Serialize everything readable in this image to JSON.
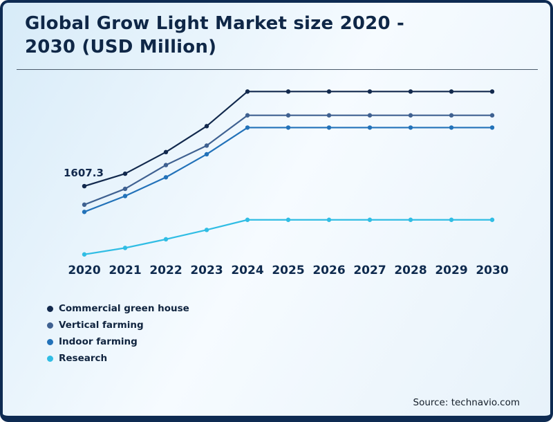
{
  "page": {
    "title": "Global Grow Light Market size 2020 - 2030 (USD Million)",
    "source": "Source: technavio.com"
  },
  "chart_data": {
    "type": "line",
    "title": "Global Grow Light Market size 2020 - 2030 (USD Million)",
    "categories": [
      "2020",
      "2021",
      "2022",
      "2023",
      "2024",
      "2025",
      "2026",
      "2027",
      "2028",
      "2029",
      "2030"
    ],
    "series": [
      {
        "name": "Commercial green house",
        "color": "#12294d",
        "values": [
          1607.3,
          1780,
          2080,
          2440,
          2920,
          2920,
          2920,
          2920,
          2920,
          2920,
          2920
        ]
      },
      {
        "name": "Vertical farming",
        "color": "#3f6191",
        "values": [
          1350,
          1570,
          1900,
          2170,
          2590,
          2590,
          2590,
          2590,
          2590,
          2590,
          2590
        ]
      },
      {
        "name": "Indoor farming",
        "color": "#2272b9",
        "values": [
          1250,
          1470,
          1730,
          2050,
          2420,
          2420,
          2420,
          2420,
          2420,
          2420,
          2420
        ]
      },
      {
        "name": "Research",
        "color": "#30bde4",
        "values": [
          660,
          750,
          870,
          1000,
          1140,
          1140,
          1140,
          1140,
          1140,
          1140,
          1140
        ]
      }
    ],
    "annotations": [
      {
        "series": "Commercial green house",
        "x": "2020",
        "label": "1607.3"
      }
    ],
    "xlabel": "",
    "ylabel": "",
    "ylim": [
      600,
      3000
    ],
    "grid": false,
    "legend_position": "bottom-left",
    "note": "Only the 2020 Commercial green house value (1607.3) is labeled in the figure; all other values are estimated from line positions. Lines rise 2020-2024 then stay flat through 2030."
  }
}
